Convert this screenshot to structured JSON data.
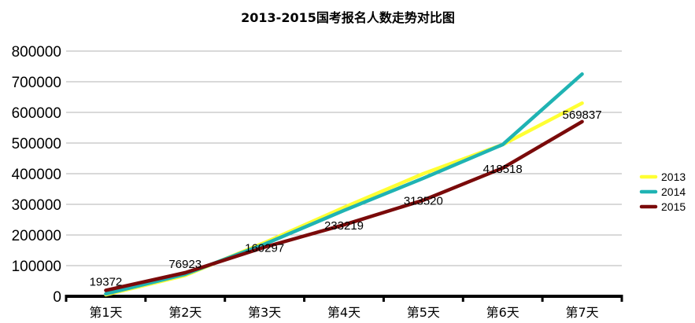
{
  "chart_data": {
    "type": "line",
    "title": "2013-2015国考报名人数走势对比图",
    "xlabel": "",
    "ylabel": "",
    "categories": [
      "第1天",
      "第2天",
      "第3天",
      "第4天",
      "第5天",
      "第6天",
      "第7天"
    ],
    "yticks": [
      "0",
      "100000",
      "200000",
      "300000",
      "400000",
      "500000",
      "600000",
      "700000",
      "800000"
    ],
    "ylim": [
      0,
      800000
    ],
    "grid": true,
    "legend_position": "right",
    "series": [
      {
        "name": "2013",
        "color": "#ffff33",
        "values": [
          5000,
          68000,
          175000,
          290000,
          400000,
          495000,
          630000
        ]
      },
      {
        "name": "2014",
        "color": "#1fb3b3",
        "values": [
          8000,
          72000,
          170000,
          280000,
          385000,
          495000,
          725000
        ]
      },
      {
        "name": "2015",
        "color": "#7a0a0a",
        "values": [
          19372,
          76923,
          160297,
          233219,
          313520,
          418518,
          569837
        ]
      }
    ],
    "data_labels": [
      "19372",
      "76923",
      "160297",
      "233219",
      "313520",
      "418518",
      "569837"
    ]
  }
}
